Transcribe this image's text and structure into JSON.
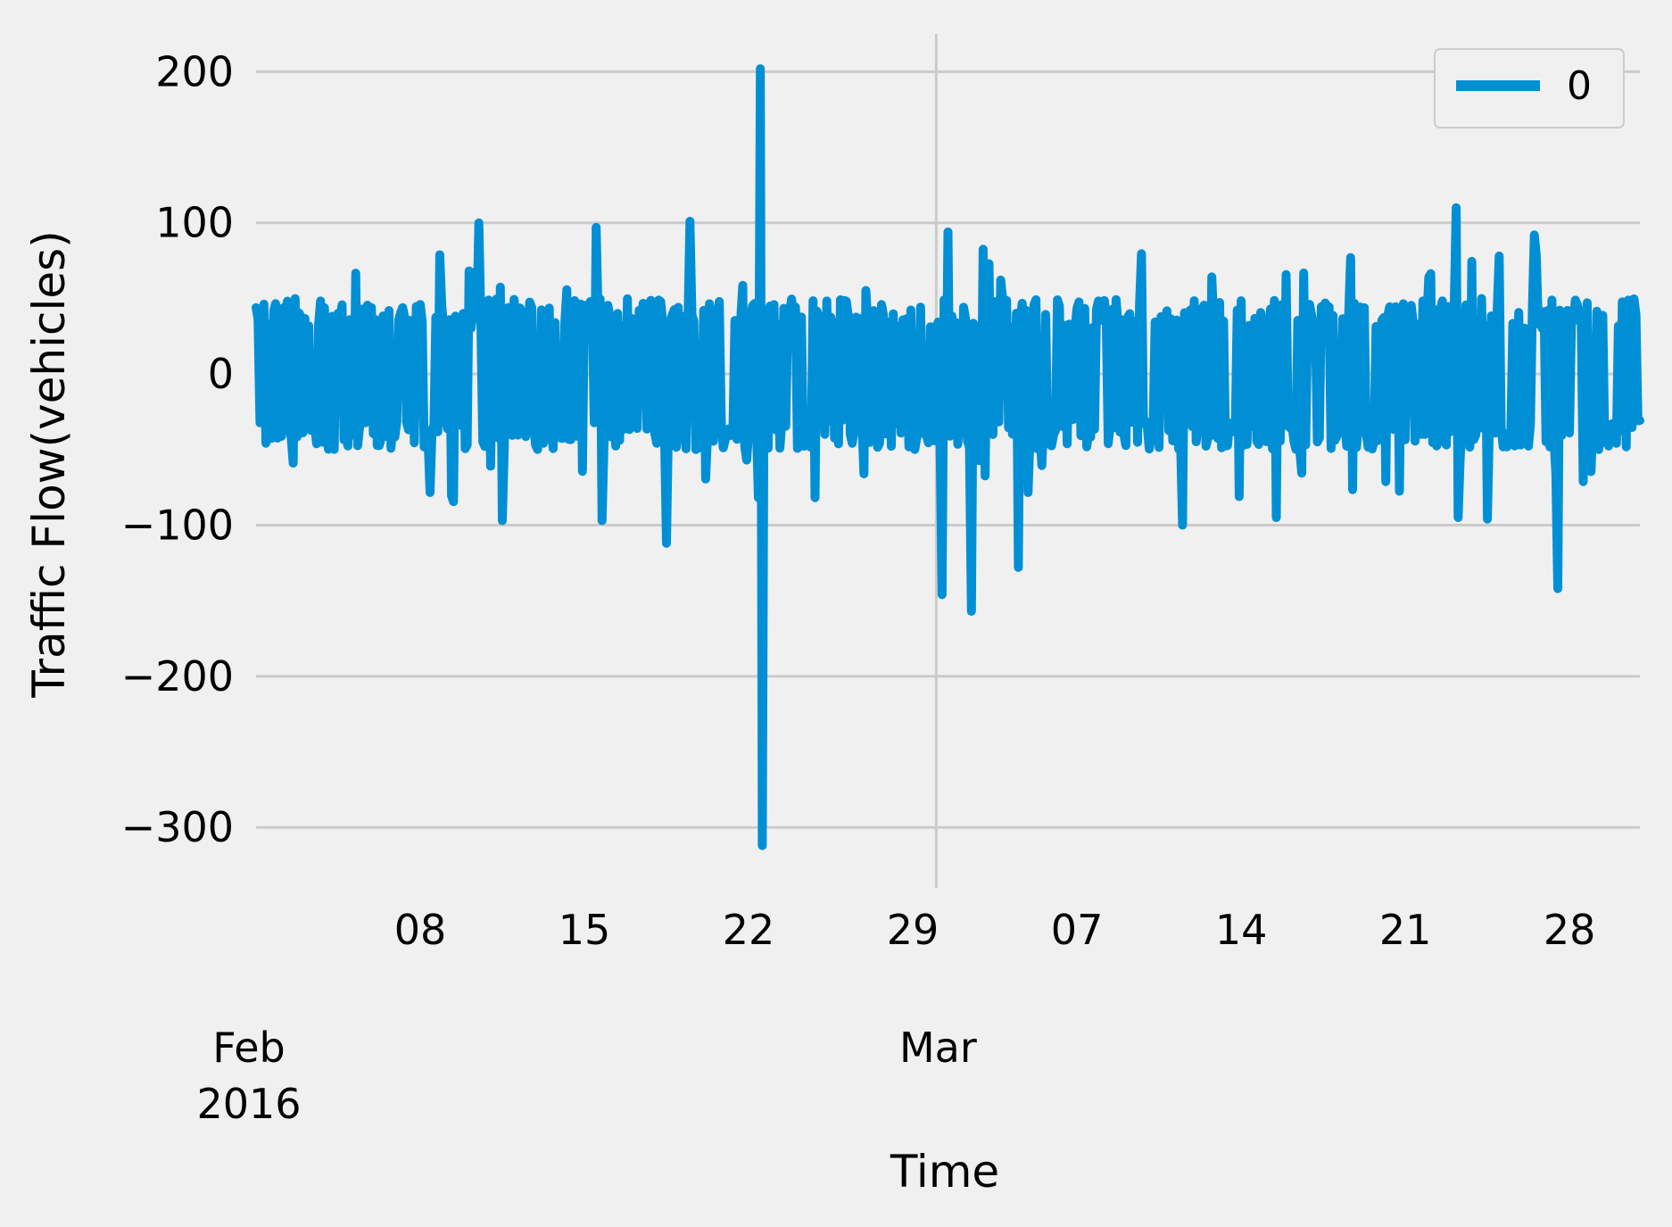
{
  "chart_data": {
    "type": "line",
    "title": "",
    "xlabel": "Time",
    "ylabel": "Traffic Flow(vehicles)",
    "x_range": [
      "2016-02-01",
      "2016-03-31"
    ],
    "ylim": [
      -340,
      225
    ],
    "y_ticks": [
      {
        "value": 200,
        "label": "200"
      },
      {
        "value": 100,
        "label": "100"
      },
      {
        "value": 0,
        "label": "0"
      },
      {
        "value": -100,
        "label": "−100"
      },
      {
        "value": -200,
        "label": "−200"
      },
      {
        "value": -300,
        "label": "−300"
      }
    ],
    "x_ticks": [
      {
        "date": "2016-02-08",
        "label": "08"
      },
      {
        "date": "2016-02-15",
        "label": "15"
      },
      {
        "date": "2016-02-22",
        "label": "22"
      },
      {
        "date": "2016-02-29",
        "label": "29"
      },
      {
        "date": "2016-03-07",
        "label": "07"
      },
      {
        "date": "2016-03-14",
        "label": "14"
      },
      {
        "date": "2016-03-21",
        "label": "21"
      },
      {
        "date": "2016-03-28",
        "label": "28"
      }
    ],
    "x_major_ticks": [
      {
        "date": "2016-02-01",
        "label": "Feb\n2016"
      },
      {
        "date": "2016-03-01",
        "label": "Mar"
      }
    ],
    "grid": true,
    "legend": {
      "position": "top-right",
      "entries": [
        "0"
      ]
    },
    "series": [
      {
        "name": "0",
        "color": "#008fd5",
        "typical_range": [
          -50,
          50
        ],
        "peaks": [
          {
            "date": "2016-02-22T12:00",
            "value": 202
          },
          {
            "date": "2016-02-22T14:00",
            "value": -312
          },
          {
            "date": "2016-03-23T04:00",
            "value": 110
          },
          {
            "date": "2016-02-10T12:00",
            "value": 100
          },
          {
            "date": "2016-02-19T12:00",
            "value": 101
          },
          {
            "date": "2016-02-15T12:00",
            "value": 97
          },
          {
            "date": "2016-03-01T12:00",
            "value": 94
          },
          {
            "date": "2016-03-26T12:00",
            "value": 92
          },
          {
            "date": "2016-03-01T06:00",
            "value": -146
          },
          {
            "date": "2016-03-02T12:00",
            "value": -157
          },
          {
            "date": "2016-03-04T12:00",
            "value": -128
          },
          {
            "date": "2016-03-27T12:00",
            "value": -142
          },
          {
            "date": "2016-02-18T12:00",
            "value": -112
          },
          {
            "date": "2016-03-11T12:00",
            "value": -100
          },
          {
            "date": "2016-02-11T12:00",
            "value": -97
          },
          {
            "date": "2016-02-15T18:00",
            "value": -97
          },
          {
            "date": "2016-03-15T12:00",
            "value": -95
          },
          {
            "date": "2016-03-23T06:00",
            "value": -95
          },
          {
            "date": "2016-03-24T12:00",
            "value": -96
          }
        ]
      }
    ]
  }
}
